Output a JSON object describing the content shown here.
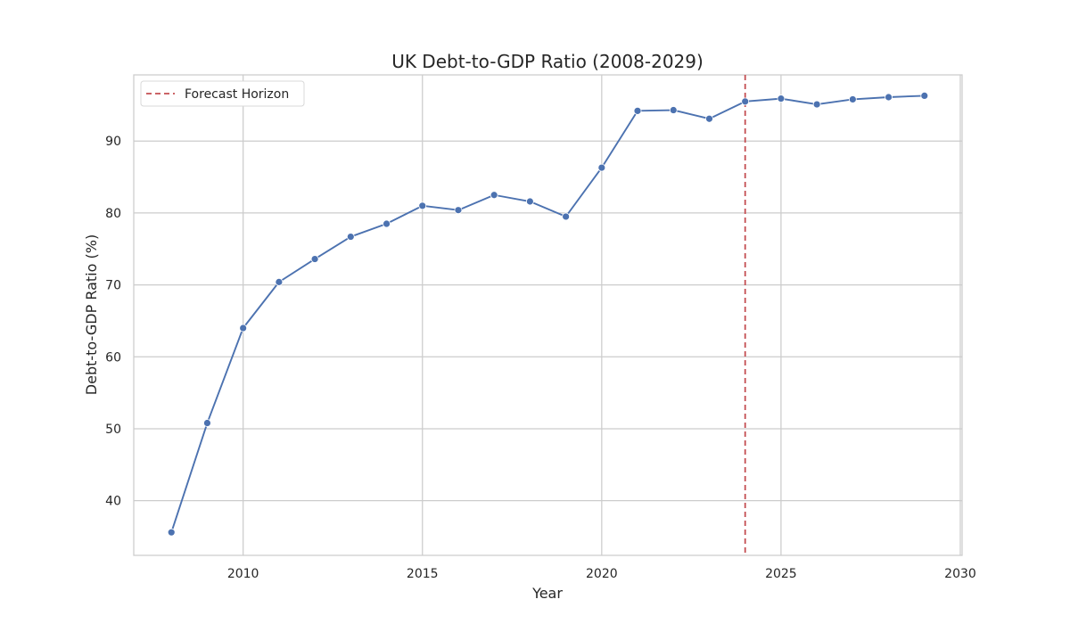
{
  "chart_data": {
    "type": "line",
    "title": "UK Debt-to-GDP Ratio (2008-2029)",
    "xlabel": "Year",
    "ylabel": "Debt-to-GDP Ratio (%)",
    "xlim": [
      2006.95,
      2030.05
    ],
    "ylim": [
      32.4,
      99.2
    ],
    "x_ticks": [
      2010,
      2015,
      2020,
      2025,
      2030
    ],
    "y_ticks": [
      40,
      50,
      60,
      70,
      80,
      90
    ],
    "grid": true,
    "series": [
      {
        "name": "Debt-to-GDP Ratio",
        "color": "#4c72b0",
        "x": [
          2008,
          2009,
          2010,
          2011,
          2012,
          2013,
          2014,
          2015,
          2016,
          2017,
          2018,
          2019,
          2020,
          2021,
          2022,
          2023,
          2024,
          2025,
          2026,
          2027,
          2028,
          2029
        ],
        "y": [
          35.6,
          50.8,
          64.0,
          70.4,
          73.6,
          76.7,
          78.5,
          81.0,
          80.4,
          82.5,
          81.6,
          79.5,
          86.3,
          94.2,
          94.3,
          93.1,
          95.5,
          95.9,
          95.1,
          95.8,
          96.1,
          96.3
        ]
      }
    ],
    "reference_lines": [
      {
        "orientation": "vertical",
        "x": 2024,
        "label": "Forecast Horizon",
        "color": "#c44e52",
        "style": "dashed"
      }
    ],
    "legend": {
      "position": "top-left",
      "entries": [
        "Forecast Horizon"
      ]
    }
  }
}
